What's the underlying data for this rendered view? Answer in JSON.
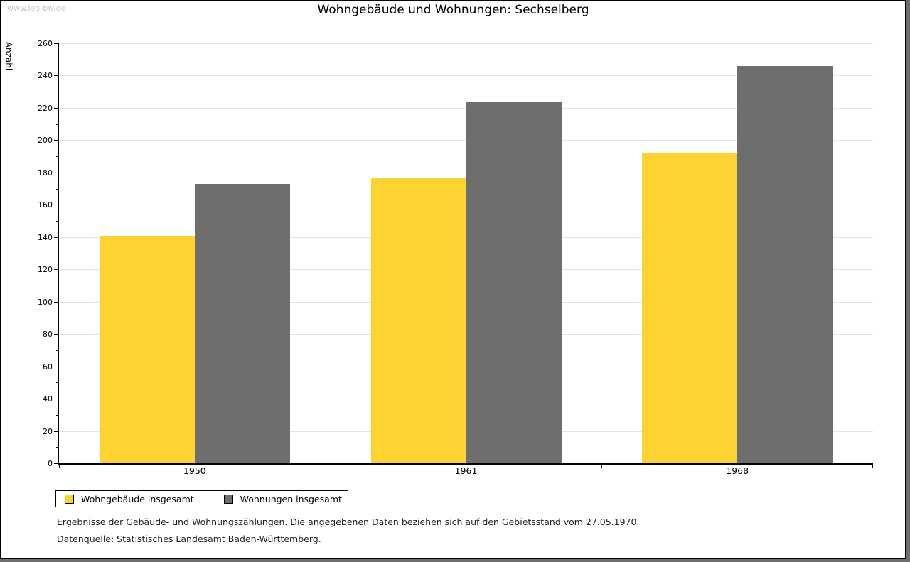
{
  "watermark": "www.leo-bw.de",
  "title": "Wohngebäude und Wohnungen: Sechselberg",
  "chart_data": {
    "type": "bar",
    "title": "Wohngebäude und Wohnungen: Sechselberg",
    "xlabel": "",
    "ylabel": "Anzahl",
    "categories": [
      "1950",
      "1961",
      "1968"
    ],
    "series": [
      {
        "name": "Wohngebäude insgesamt",
        "color": "#fcd331",
        "values": [
          141,
          177,
          192
        ]
      },
      {
        "name": "Wohnungen insgesamt",
        "color": "#6e6e6e",
        "values": [
          173,
          224,
          246
        ]
      }
    ],
    "ylim": [
      0,
      260
    ],
    "ytick_step": 20,
    "yminor_step": 10,
    "grid": "horizontal-major",
    "legend_position": "bottom-left",
    "gridline_color": "#e3e3e3",
    "frame_shadow_color": "#6e6e6e"
  },
  "footer": {
    "line1": "Ergebnisse der Gebäude- und Wohnungszählungen. Die angegebenen Daten beziehen sich auf den Gebietsstand vom 27.05.1970.",
    "line2": "Datenquelle: Statistisches Landesamt Baden-Württemberg."
  }
}
